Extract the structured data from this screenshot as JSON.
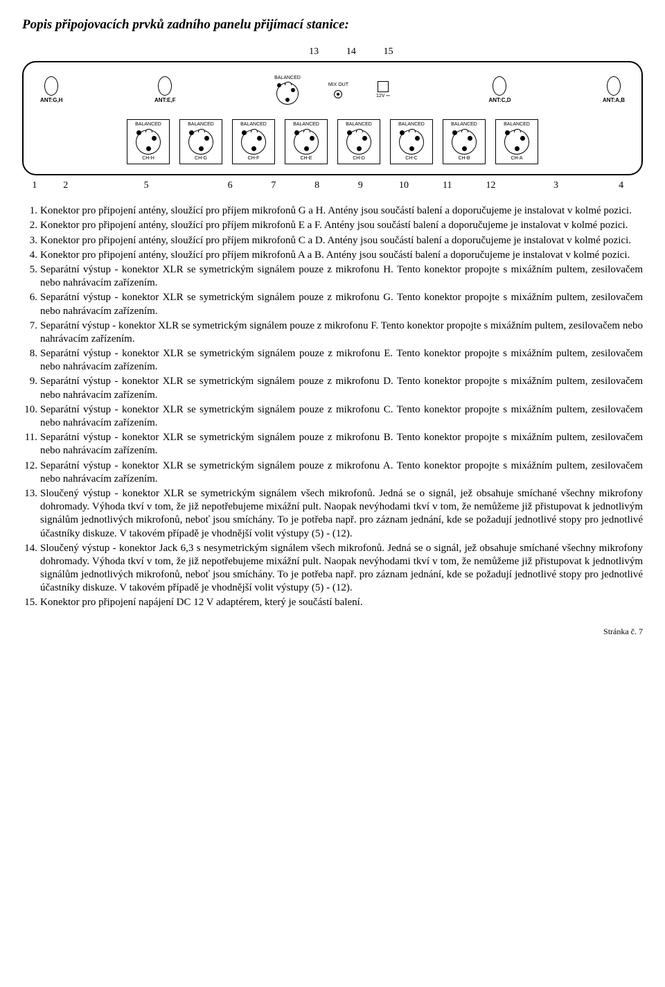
{
  "title": "Popis připojovacích prvků zadního panelu přijímací stanice:",
  "diagram": {
    "top_numbers": [
      "13",
      "14",
      "15"
    ],
    "bottom_numbers": [
      "1",
      "2",
      "5",
      "6",
      "7",
      "8",
      "9",
      "10",
      "11",
      "12",
      "3",
      "4"
    ],
    "antennas": [
      {
        "label": "ANT:G,H"
      },
      {
        "label": "ANT:E,F"
      },
      {
        "label": "ANT:C,D"
      },
      {
        "label": "ANT:A,B"
      }
    ],
    "balanced_small_label": "BALANCED",
    "mixout_label": "MIX OUT",
    "dc_label": "12V ⎓",
    "channels": [
      {
        "top": "BALANCED",
        "bottom": "CH-H"
      },
      {
        "top": "BALANCED",
        "bottom": "CH-G"
      },
      {
        "top": "BALANCED",
        "bottom": "CH-F"
      },
      {
        "top": "BALANCED",
        "bottom": "CH-E"
      },
      {
        "top": "BALANCED",
        "bottom": "CH-D"
      },
      {
        "top": "BALANCED",
        "bottom": "CH-C"
      },
      {
        "top": "BALANCED",
        "bottom": "CH-B"
      },
      {
        "top": "BALANCED",
        "bottom": "CH-A"
      }
    ]
  },
  "items": [
    "Konektor pro připojení antény, sloužící pro příjem mikrofonů G a H. Antény jsou součástí balení a doporučujeme je instalovat v kolmé pozici.",
    "Konektor pro připojení antény, sloužící pro příjem mikrofonů E a F. Antény jsou součástí balení a doporučujeme je instalovat v kolmé pozici.",
    "Konektor pro připojení antény, sloužící pro příjem mikrofonů C a D. Antény jsou součástí balení a doporučujeme je instalovat v kolmé pozici.",
    "Konektor pro připojení antény, sloužící pro příjem mikrofonů A a B. Antény jsou součástí balení a doporučujeme je instalovat v kolmé pozici.",
    "Separátní výstup - konektor XLR se symetrickým signálem pouze z mikrofonu H. Tento konektor propojte s mixážním pultem, zesilovačem nebo nahrávacím zařízením.",
    "Separátní výstup - konektor XLR se symetrickým signálem pouze z mikrofonu G. Tento konektor propojte s mixážním pultem, zesilovačem nebo nahrávacím zařízením.",
    "Separátní výstup - konektor XLR se symetrickým signálem pouze z mikrofonu F. Tento konektor propojte s mixážním pultem, zesilovačem nebo nahrávacím zařízením.",
    "Separátní výstup - konektor XLR se symetrickým signálem pouze z mikrofonu E. Tento konektor propojte s mixážním pultem, zesilovačem nebo nahrávacím zařízením.",
    "Separátní výstup - konektor XLR se symetrickým signálem pouze z mikrofonu D. Tento konektor propojte s mixážním pultem, zesilovačem nebo nahrávacím zařízením.",
    "Separátní výstup - konektor XLR se symetrickým signálem pouze z mikrofonu C. Tento konektor propojte s mixážním pultem, zesilovačem nebo nahrávacím zařízením.",
    "Separátní výstup - konektor XLR se symetrickým signálem pouze z mikrofonu B. Tento konektor propojte s mixážním pultem, zesilovačem nebo nahrávacím zařízením.",
    "Separátní výstup - konektor XLR se symetrickým signálem pouze z mikrofonu A. Tento konektor propojte s mixážním pultem, zesilovačem nebo nahrávacím zařízením.",
    "Sloučený výstup - konektor XLR se symetrickým signálem všech mikrofonů. Jedná se o signál, jež obsahuje smíchané všechny mikrofony dohromady. Výhoda tkví v tom, že již nepotřebujeme mixážní pult. Naopak nevýhodami tkví v tom, že nemůžeme již přistupovat k jednotlivým signálům jednotlivých mikrofonů, neboť jsou smíchány. To je potřeba např. pro záznam jednání, kde se požadují jednotlivé stopy pro jednotlivé účastníky diskuze. V takovém případě je vhodnější volit výstupy (5) - (12).",
    "Sloučený výstup - konektor Jack 6,3 s nesymetrickým signálem všech mikrofonů. Jedná se o signál, jež obsahuje smíchané všechny mikrofony dohromady. Výhoda tkví v tom, že již nepotřebujeme mixážní pult. Naopak nevýhodami tkví v tom, že nemůžeme již přistupovat k jednotlivým signálům jednotlivých mikrofonů, neboť jsou smíchány. To je potřeba např. pro záznam jednání, kde se požadují jednotlivé stopy pro jednotlivé účastníky diskuze. V takovém případě je vhodnější volit výstupy (5) - (12).",
    "Konektor pro připojení napájení DC 12 V adaptérem, který je součástí balení."
  ],
  "footer": "Stránka č. 7"
}
